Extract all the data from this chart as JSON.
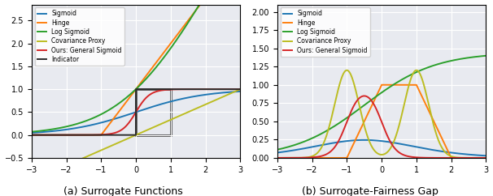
{
  "xlim": [
    -3,
    3
  ],
  "x_ticks": [
    -3,
    -2,
    -1,
    0,
    1,
    2,
    3
  ],
  "ylim_left": [
    -0.5,
    2.85
  ],
  "ylim_right": [
    0.0,
    2.1
  ],
  "colors": {
    "sigmoid": "#1f77b4",
    "hinge": "#ff7f0e",
    "log_sigmoid": "#2ca02c",
    "covariance": "#bcbd22",
    "general_sigmoid": "#d62728",
    "indicator": "#2b2b2b"
  },
  "legend_labels": [
    "Sigmoid",
    "Hinge",
    "Log Sigmoid",
    "Covariance Proxy",
    "Ours: General Sigmoid",
    "Indicator"
  ],
  "title_left": "(a) Surrogate Functions",
  "title_right": "(b) Surrogate-Fairness Gap",
  "bg_color": "#e8eaf0",
  "linewidth": 1.4
}
